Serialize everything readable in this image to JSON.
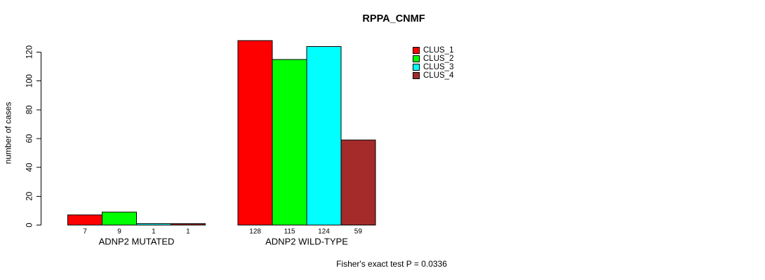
{
  "title": "RPPA_CNMF",
  "footnote": "Fisher's exact test P = 0.0336",
  "chart_data": {
    "type": "bar",
    "title": "RPPA_CNMF",
    "xlabel": "",
    "ylabel": "number of cases",
    "categories": [
      "ADNP2 MUTATED",
      "ADNP2 WILD-TYPE"
    ],
    "series": [
      {
        "name": "CLUS_1",
        "color": "#FF0000",
        "values": [
          7,
          128
        ]
      },
      {
        "name": "CLUS_2",
        "color": "#00FF00",
        "values": [
          9,
          115
        ]
      },
      {
        "name": "CLUS_3",
        "color": "#00FFFF",
        "values": [
          1,
          124
        ]
      },
      {
        "name": "CLUS_4",
        "color": "#A52A2A",
        "values": [
          1,
          59
        ]
      }
    ],
    "bar_value_labels": [
      [
        "7",
        "9",
        "1",
        "1"
      ],
      [
        "128",
        "115",
        "124",
        "59"
      ]
    ],
    "yticks": [
      0,
      20,
      40,
      60,
      80,
      100,
      120
    ],
    "ylim": [
      0,
      128
    ],
    "grid": false,
    "legend_position": "top-right",
    "annotation": "Fisher's exact test P = 0.0336"
  }
}
